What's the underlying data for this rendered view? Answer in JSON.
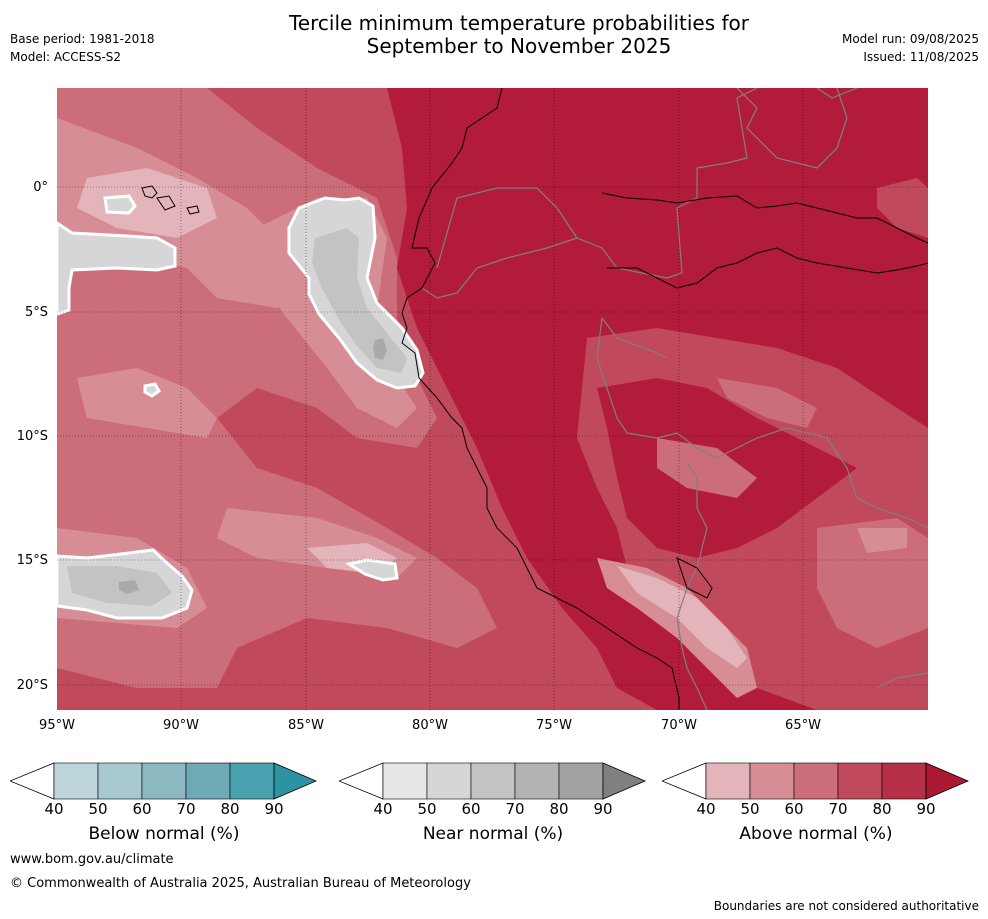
{
  "header": {
    "title_line1": "Tercile minimum temperature probabilities for",
    "title_line2": "September to November 2025",
    "base_period": "Base period: 1981-2018",
    "model": "Model: ACCESS-S2",
    "model_run": "Model run: 09/08/2025",
    "issued": "Issued: 11/08/2025"
  },
  "map": {
    "lat_labels": [
      "0°",
      "5°S",
      "10°S",
      "15°S",
      "20°S"
    ],
    "lon_labels": [
      "95°W",
      "90°W",
      "85°W",
      "80°W",
      "75°W",
      "70°W",
      "65°W"
    ],
    "lat_range": [
      -21,
      4
    ],
    "lon_range": [
      -95,
      -60
    ],
    "colors": {
      "above_90": "#b31b3a",
      "above_80": "#c04a5c",
      "above_70": "#cc6e79",
      "above_60": "#d78d96",
      "above_50": "#e3b4ba",
      "near_60": "#d6d6d6",
      "near_70": "#c3c3c3",
      "near_80": "#a9a9a9",
      "coast": "#000000",
      "border": "#808080"
    }
  },
  "colorbars": [
    {
      "title": "Below normal (%)",
      "ticks": [
        "40",
        "50",
        "60",
        "70",
        "80",
        "90"
      ],
      "colors": [
        "#bdd6db",
        "#a6c8ce",
        "#8bb8c1",
        "#6eaab5",
        "#4aa1b0",
        "#2d93a3"
      ]
    },
    {
      "title": "Near normal (%)",
      "ticks": [
        "40",
        "50",
        "60",
        "70",
        "80",
        "90"
      ],
      "colors": [
        "#e6e6e6",
        "#d6d6d6",
        "#c3c3c3",
        "#b3b3b3",
        "#a1a1a1",
        "#808080"
      ]
    },
    {
      "title": "Above normal (%)",
      "ticks": [
        "40",
        "50",
        "60",
        "70",
        "80",
        "90"
      ],
      "colors": [
        "#e3b4ba",
        "#d78d96",
        "#cc6e79",
        "#c04a5c",
        "#b52f46",
        "#ab1832"
      ]
    }
  ],
  "footer": {
    "website": "www.bom.gov.au/climate",
    "copyright": "© Commonwealth of Australia 2025, Australian Bureau of Meteorology",
    "disclaimer": "Boundaries are not considered authoritative"
  }
}
